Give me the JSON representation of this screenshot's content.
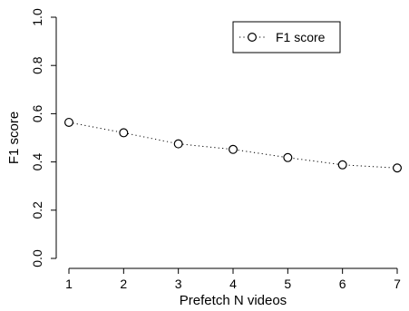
{
  "chart_data": {
    "type": "line",
    "title": "",
    "xlabel": "Prefetch N videos",
    "ylabel": "F1 score",
    "xlim": [
      1,
      7
    ],
    "ylim": [
      0,
      1
    ],
    "x": [
      1,
      2,
      3,
      4,
      5,
      6,
      7
    ],
    "x_ticks": [
      "1",
      "2",
      "3",
      "4",
      "5",
      "6",
      "7"
    ],
    "y_ticks": [
      "0.0",
      "0.2",
      "0.4",
      "0.6",
      "0.8",
      "1.0"
    ],
    "y_tick_values": [
      0,
      0.2,
      0.4,
      0.6,
      0.8,
      1.0
    ],
    "grid": false,
    "legend_position": "top-right",
    "series": [
      {
        "name": "F1 score",
        "values": [
          0.564,
          0.521,
          0.475,
          0.452,
          0.418,
          0.388,
          0.375
        ],
        "marker": "open-circle",
        "line_style": "dotted",
        "color": "#000000"
      }
    ]
  }
}
